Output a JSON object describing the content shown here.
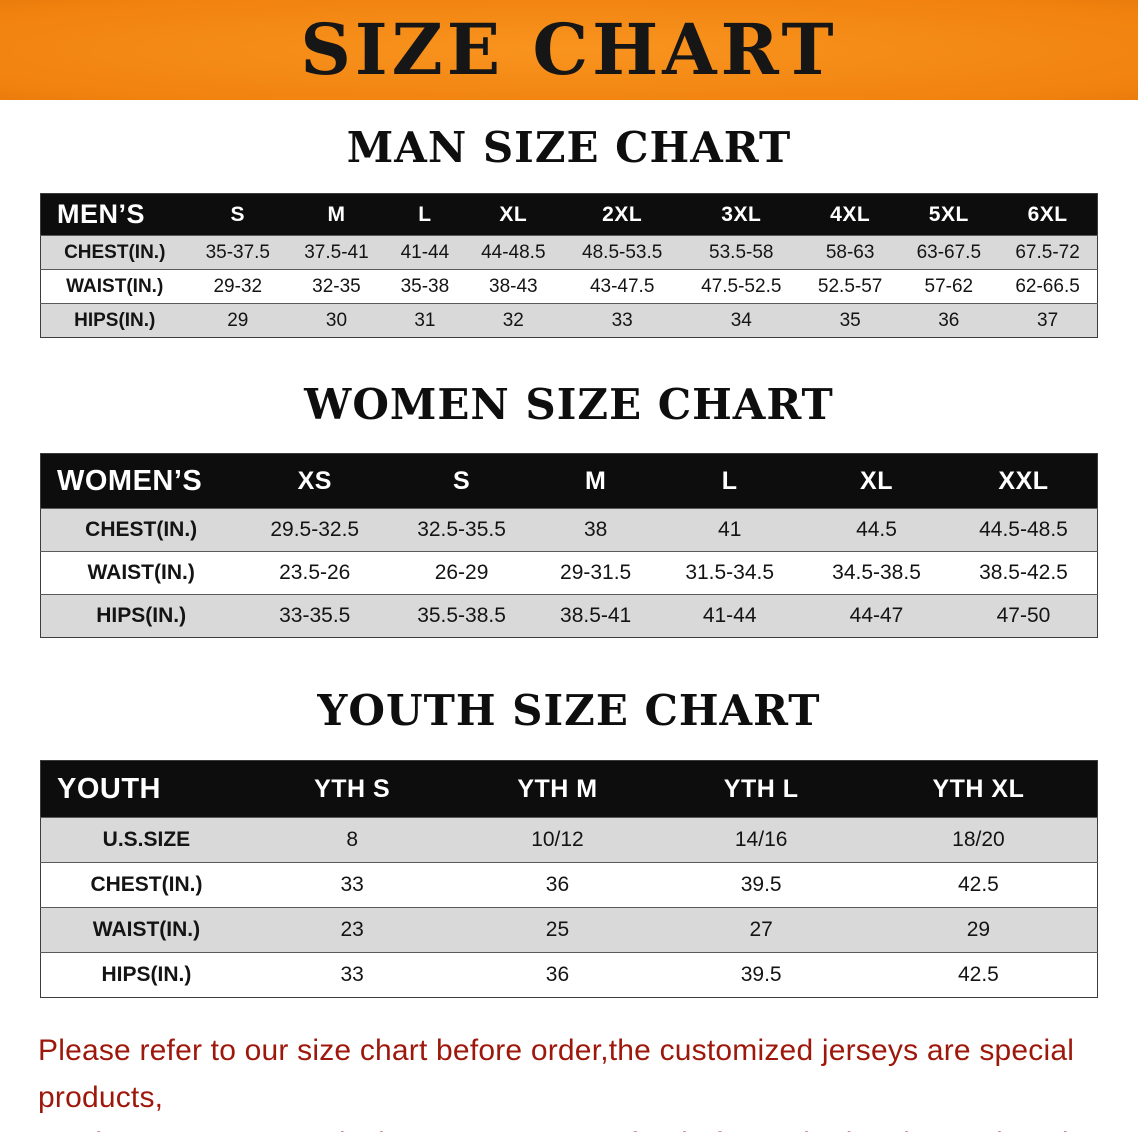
{
  "banner": {
    "title": "SIZE CHART",
    "background_color": "#f1820f",
    "text_color": "#161616"
  },
  "colors": {
    "table_header_bg": "#0d0d0d",
    "table_header_text": "#ffffff",
    "row_alt_gray": "#d9d9d9",
    "footer_text": "#9e170b"
  },
  "chart_data": [
    {
      "type": "table",
      "title": "MAN SIZE CHART",
      "header": [
        "MEN’S",
        "S",
        "M",
        "L",
        "XL",
        "2XL",
        "3XL",
        "4XL",
        "5XL",
        "6XL"
      ],
      "rows": [
        [
          "CHEST(IN.)",
          "35-37.5",
          "37.5-41",
          "41-44",
          "44-48.5",
          "48.5-53.5",
          "53.5-58",
          "58-63",
          "63-67.5",
          "67.5-72"
        ],
        [
          "WAIST(IN.)",
          "29-32",
          "32-35",
          "35-38",
          "38-43",
          "43-47.5",
          "47.5-52.5",
          "52.5-57",
          "57-62",
          "62-66.5"
        ],
        [
          "HIPS(IN.)",
          "29",
          "30",
          "31",
          "32",
          "33",
          "34",
          "35",
          "36",
          "37"
        ]
      ]
    },
    {
      "type": "table",
      "title": "WOMEN SIZE CHART",
      "header": [
        "WOMEN’S",
        "XS",
        "S",
        "M",
        "L",
        "XL",
        "XXL"
      ],
      "rows": [
        [
          "CHEST(IN.)",
          "29.5-32.5",
          "32.5-35.5",
          "38",
          "41",
          "44.5",
          "44.5-48.5"
        ],
        [
          "WAIST(IN.)",
          "23.5-26",
          "26-29",
          "29-31.5",
          "31.5-34.5",
          "34.5-38.5",
          "38.5-42.5"
        ],
        [
          "HIPS(IN.)",
          "33-35.5",
          "35.5-38.5",
          "38.5-41",
          "41-44",
          "44-47",
          "47-50"
        ]
      ]
    },
    {
      "type": "table",
      "title": "YOUTH SIZE CHART",
      "header": [
        "YOUTH",
        "YTH S",
        "YTH M",
        "YTH L",
        "YTH XL"
      ],
      "rows": [
        [
          "U.S.SIZE",
          "8",
          "10/12",
          "14/16",
          "18/20"
        ],
        [
          "CHEST(IN.)",
          "33",
          "36",
          "39.5",
          "42.5"
        ],
        [
          "WAIST(IN.)",
          "23",
          "25",
          "27",
          "29"
        ],
        [
          "HIPS(IN.)",
          "33",
          "36",
          "39.5",
          "42.5"
        ]
      ]
    }
  ],
  "footer": {
    "line1": "Please refer to our size chart before order,the customized jerseys are special products,",
    "line2": "we don’t accept cancel, change, teturn or refund after order has been placed!"
  }
}
